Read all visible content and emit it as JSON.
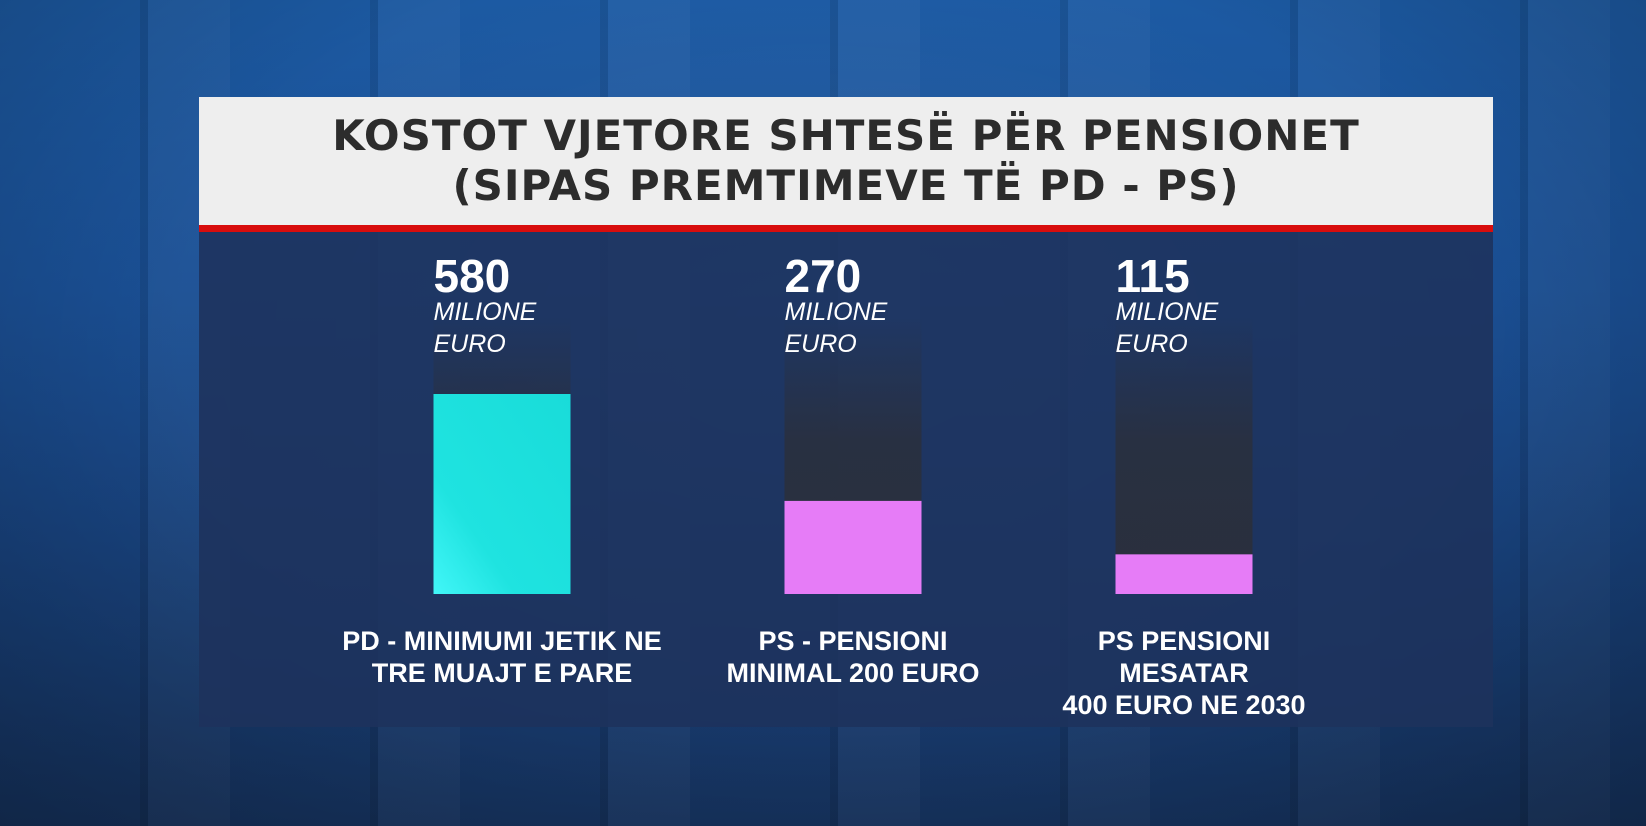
{
  "title": {
    "line1": "KOSTOT VJETORE SHTESË PËR PENSIONET",
    "line2": "(SIPAS PREMTIMEVE TË PD - PS)"
  },
  "colors": {
    "title_bg": "#eeeeee",
    "title_text": "#2c2c2c",
    "accent_rule": "#d80d0d",
    "panel_bg": "#1e325c",
    "bar_track": "#2a2f3c",
    "pd": "#1fe3e0",
    "ps": "#e67cf7"
  },
  "chart_data": {
    "type": "bar",
    "title": "KOSTOT VJETORE SHTESË PËR PENSIONET (SIPAS PREMTIMEVE TË PD - PS)",
    "unit_line1": "MILIONE",
    "unit_line2": "EURO",
    "categories": [
      [
        "PD - MINIMUMI JETIK NE",
        "TRE MUAJT E PARE"
      ],
      [
        "PS - PENSIONI",
        "MINIMAL 200 EURO"
      ],
      [
        "PS PENSIONI",
        "MESATAR",
        "400 EURO NE 2030"
      ]
    ],
    "values": [
      580,
      270,
      115
    ],
    "value_labels": [
      "580",
      "270",
      "115"
    ],
    "bar_colors": [
      "#1fe3e0",
      "#e67cf7",
      "#e67cf7"
    ],
    "ylim": [
      0,
      900
    ],
    "grid": false,
    "legend": "none"
  }
}
